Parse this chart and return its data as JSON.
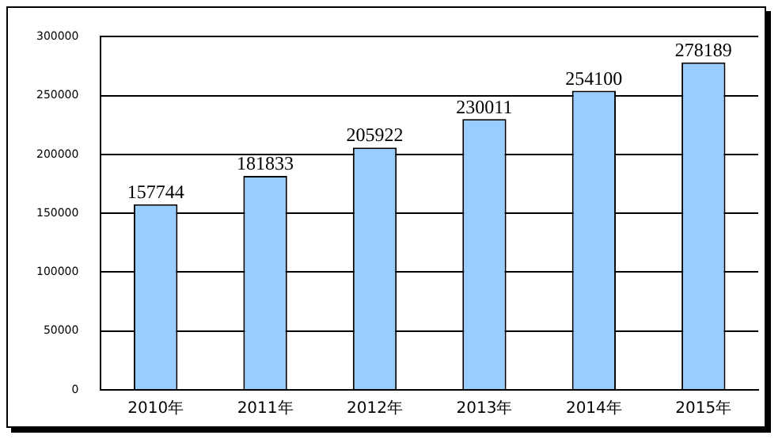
{
  "chart_data": {
    "type": "bar",
    "categories": [
      "2010年",
      "2011年",
      "2012年",
      "2013年",
      "2014年",
      "2015年"
    ],
    "values": [
      157744,
      181833,
      205922,
      230011,
      254100,
      278189
    ],
    "color": "#99ccff",
    "ylim": [
      0,
      300000
    ],
    "yticks": [
      0,
      50000,
      100000,
      150000,
      200000,
      250000,
      300000
    ],
    "grid": "y",
    "legend": false,
    "data_labels": true
  }
}
